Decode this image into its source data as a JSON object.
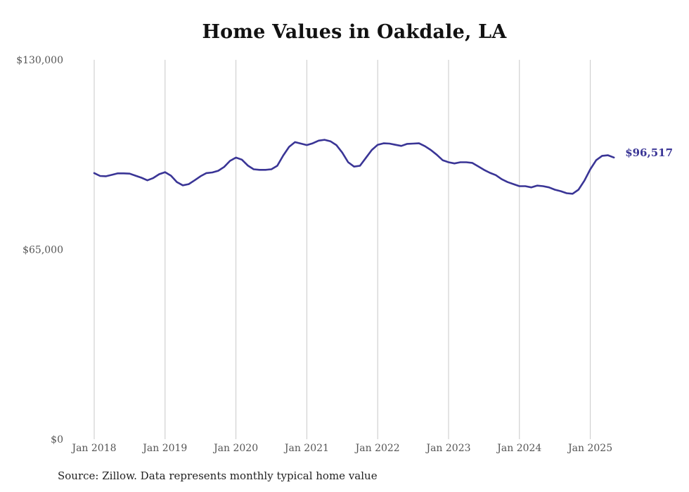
{
  "chart_data": {
    "type": "line",
    "title": "Home Values in Oakdale, LA",
    "xlabel": "",
    "ylabel": "",
    "ylim": [
      0,
      130000
    ],
    "y_ticks": [
      {
        "value": 0,
        "label": "$0"
      },
      {
        "value": 65000,
        "label": "$65,000"
      },
      {
        "value": 130000,
        "label": "$130,000"
      }
    ],
    "x_ticks": [
      {
        "date": "2018-01",
        "label": "Jan 2018"
      },
      {
        "date": "2019-01",
        "label": "Jan 2019"
      },
      {
        "date": "2020-01",
        "label": "Jan 2020"
      },
      {
        "date": "2021-01",
        "label": "Jan 2021"
      },
      {
        "date": "2022-01",
        "label": "Jan 2022"
      },
      {
        "date": "2023-01",
        "label": "Jan 2023"
      },
      {
        "date": "2024-01",
        "label": "Jan 2024"
      },
      {
        "date": "2025-01",
        "label": "Jan 2025"
      }
    ],
    "grid": "vertical",
    "line_color": "#3a3596",
    "series": [
      {
        "x": [
          "2018-01",
          "2018-02",
          "2018-03",
          "2018-04",
          "2018-05",
          "2018-06",
          "2018-07",
          "2018-08",
          "2018-09",
          "2018-10",
          "2018-11",
          "2018-12",
          "2019-01",
          "2019-02",
          "2019-03",
          "2019-04",
          "2019-05",
          "2019-06",
          "2019-07",
          "2019-08",
          "2019-09",
          "2019-10",
          "2019-11",
          "2019-12",
          "2020-01",
          "2020-02",
          "2020-03",
          "2020-04",
          "2020-05",
          "2020-06",
          "2020-07",
          "2020-08",
          "2020-09",
          "2020-10",
          "2020-11",
          "2020-12",
          "2021-01",
          "2021-02",
          "2021-03",
          "2021-04",
          "2021-05",
          "2021-06",
          "2021-07",
          "2021-08",
          "2021-09",
          "2021-10",
          "2021-11",
          "2021-12",
          "2022-01",
          "2022-02",
          "2022-03",
          "2022-04",
          "2022-05",
          "2022-06",
          "2022-07",
          "2022-08",
          "2022-09",
          "2022-10",
          "2022-11",
          "2022-12",
          "2023-01",
          "2023-02",
          "2023-03",
          "2023-04",
          "2023-05",
          "2023-06",
          "2023-07",
          "2023-08",
          "2023-09",
          "2023-10",
          "2023-11",
          "2023-12",
          "2024-01",
          "2024-02",
          "2024-03",
          "2024-04",
          "2024-05",
          "2024-06",
          "2024-07",
          "2024-08",
          "2024-09",
          "2024-10",
          "2024-11",
          "2024-12",
          "2025-01",
          "2025-02",
          "2025-03",
          "2025-04",
          "2025-05"
        ],
        "y": [
          91200,
          90200,
          90100,
          90600,
          91100,
          91100,
          91000,
          90300,
          89600,
          88700,
          89500,
          90800,
          91500,
          90300,
          88100,
          87000,
          87400,
          88700,
          90100,
          91200,
          91400,
          92000,
          93300,
          95400,
          96500,
          95800,
          93800,
          92500,
          92300,
          92300,
          92500,
          93700,
          97200,
          100200,
          101800,
          101300,
          100800,
          101400,
          102300,
          102600,
          102100,
          100800,
          98200,
          94900,
          93400,
          93700,
          96400,
          99100,
          100900,
          101400,
          101300,
          100900,
          100500,
          101200,
          101300,
          101400,
          100400,
          99100,
          97500,
          95600,
          94900,
          94500,
          94900,
          94900,
          94700,
          93500,
          92300,
          91300,
          90500,
          89100,
          88100,
          87400,
          86700,
          86700,
          86300,
          86900,
          86700,
          86300,
          85500,
          85000,
          84300,
          84100,
          85500,
          88600,
          92500,
          95600,
          97100,
          97300,
          96517
        ]
      }
    ],
    "end_label": "$96,517",
    "source": "Source: Zillow. Data represents monthly typical home value"
  }
}
